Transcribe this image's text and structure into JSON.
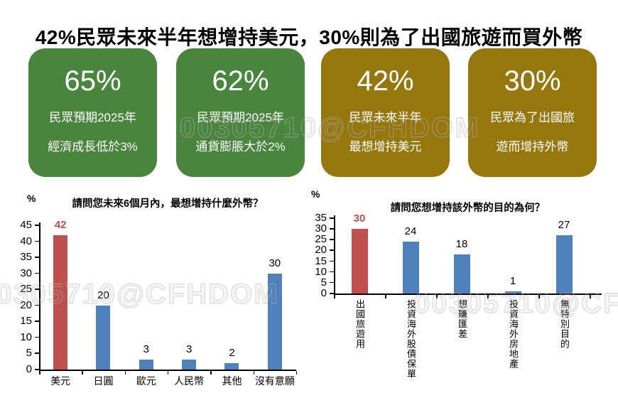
{
  "title": "42%民眾未來半年想增持美元，30%則為了出國旅遊而買外幣",
  "watermark_text": "00305710@CFHDOM",
  "colors": {
    "card_green": "#4a853e",
    "card_gold": "#96770d",
    "bar_red": "#c0504d",
    "bar_blue": "#4f81bd",
    "label_black": "#000000"
  },
  "cards": [
    {
      "value": "65%",
      "line1": "民眾預期2025年",
      "line2": "經濟成長低於3%",
      "color": "#4a853e"
    },
    {
      "value": "62%",
      "line1": "民眾預期2025年",
      "line2": "通貨膨脹大於2%",
      "color": "#4a853e"
    },
    {
      "value": "42%",
      "line1": "民眾未來半年",
      "line2": "最想增持美元",
      "color": "#96770d"
    },
    {
      "value": "30%",
      "line1": "民眾為了出國旅",
      "line2": "遊而增持外幣",
      "color": "#96770d"
    }
  ],
  "chart_data": [
    {
      "type": "bar",
      "title": "請問您未來6個月內，最想增持什麼外幣？",
      "ylabel": "%",
      "categories": [
        "美元",
        "日圓",
        "歐元",
        "人民幣",
        "其他",
        "沒有意願"
      ],
      "values": [
        42,
        20,
        3,
        3,
        2,
        30
      ],
      "bar_colors": [
        "#c0504d",
        "#4f81bd",
        "#4f81bd",
        "#4f81bd",
        "#4f81bd",
        "#4f81bd"
      ],
      "value_label_colors": [
        "#c0504d",
        "#000000",
        "#000000",
        "#000000",
        "#000000",
        "#000000"
      ],
      "ylim": [
        0,
        45
      ],
      "ytick_step": 5,
      "grid": false,
      "legend": null,
      "xlabel_orientation": "horizontal"
    },
    {
      "type": "bar",
      "title": "請問您想增持該外幣的目的為何？",
      "ylabel": "%",
      "categories": [
        "出國旅遊用",
        "投資海外股債保單",
        "想賺匯差",
        "投資海外房地產",
        "無特別目的"
      ],
      "values": [
        30,
        24,
        18,
        1,
        27
      ],
      "bar_colors": [
        "#c0504d",
        "#4f81bd",
        "#4f81bd",
        "#4f81bd",
        "#4f81bd"
      ],
      "value_label_colors": [
        "#c0504d",
        "#000000",
        "#000000",
        "#000000",
        "#000000"
      ],
      "ylim": [
        0,
        35
      ],
      "ytick_step": 5,
      "grid": false,
      "legend": null,
      "xlabel_orientation": "vertical"
    }
  ]
}
